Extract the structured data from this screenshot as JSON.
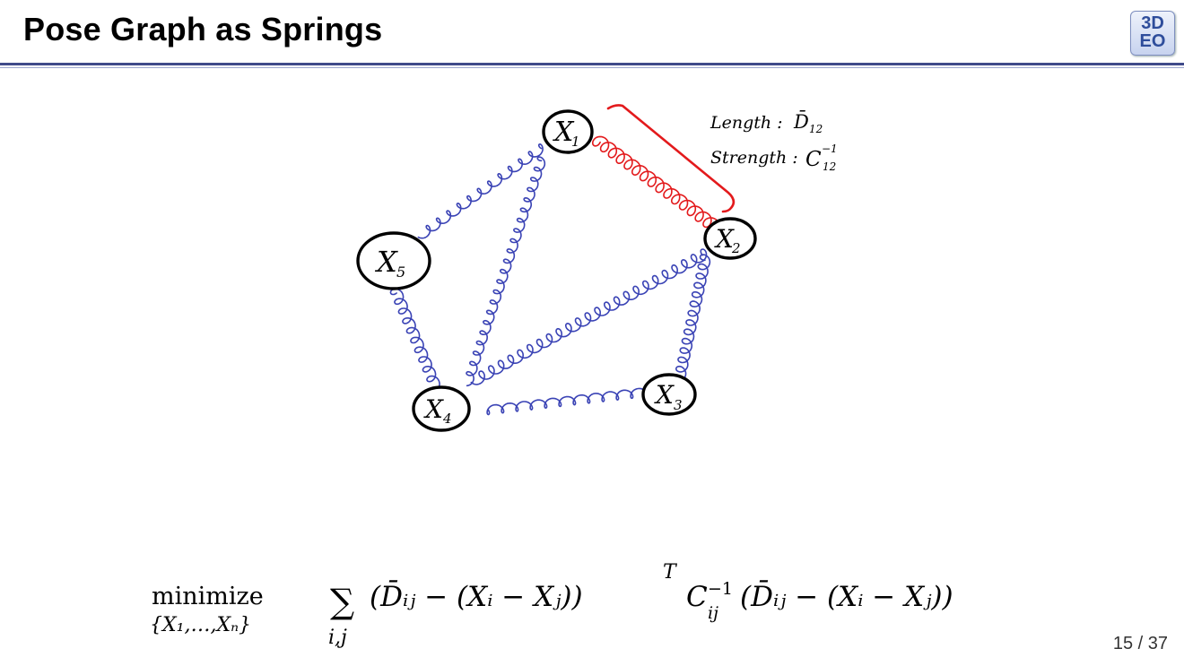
{
  "slide": {
    "title": "Pose Graph as Springs",
    "logo": {
      "line1": "3D",
      "line2": "EO"
    },
    "page_number": "15 / 37"
  },
  "graph": {
    "nodes": [
      {
        "id": "x1",
        "label": "X",
        "sub": "1"
      },
      {
        "id": "x2",
        "label": "X",
        "sub": "2"
      },
      {
        "id": "x3",
        "label": "X",
        "sub": "3"
      },
      {
        "id": "x4",
        "label": "X",
        "sub": "4"
      },
      {
        "id": "x5",
        "label": "X",
        "sub": "5"
      }
    ],
    "annotation": {
      "length_label": "Length :",
      "length_symbol": "D̄",
      "length_sub": "12",
      "strength_label": "Strength :",
      "strength_symbol": "C",
      "strength_sub": "12",
      "strength_sup": "−1"
    },
    "colors": {
      "spring": "#3a43b5",
      "highlight": "#e31a1c",
      "node": "#000000"
    }
  },
  "formula": {
    "operator": "minimize",
    "operator_sub": "{X₁,…,Xₙ}",
    "sum": "∑",
    "sum_sub": "i,j",
    "body_left": "(D̄ᵢⱼ − (Xᵢ − Xⱼ))",
    "transpose": "T",
    "cov": "C",
    "cov_sub": "ij",
    "cov_sup": "−1",
    "body_right": "(D̄ᵢⱼ − (Xᵢ − Xⱼ))"
  }
}
